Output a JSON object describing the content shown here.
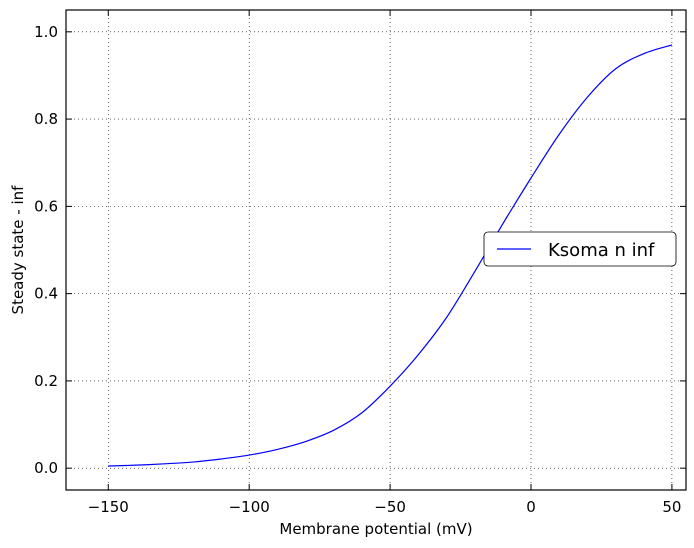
{
  "chart_data": {
    "type": "line",
    "xlabel": "Membrane potential (mV)",
    "ylabel": "Steady state - inf",
    "xlim": [
      -165,
      55
    ],
    "ylim": [
      -0.05,
      1.05
    ],
    "xticks": [
      -150,
      -100,
      -50,
      0,
      50
    ],
    "yticks": [
      0.0,
      0.2,
      0.4,
      0.6,
      0.8,
      1.0
    ],
    "xtick_labels": [
      "−150",
      "−100",
      "−50",
      "0",
      "50"
    ],
    "ytick_labels": [
      "0.0",
      "0.2",
      "0.4",
      "0.6",
      "0.8",
      "1.0"
    ],
    "grid": true,
    "legend_position": "center-right",
    "series": [
      {
        "name": "Ksoma n inf",
        "color": "#0000ff",
        "x": [
          -150,
          -140,
          -130,
          -120,
          -110,
          -100,
          -90,
          -80,
          -70,
          -60,
          -50,
          -40,
          -30,
          -20,
          -10,
          0,
          10,
          20,
          30,
          40,
          50
        ],
        "y": [
          0.005,
          0.007,
          0.01,
          0.014,
          0.021,
          0.03,
          0.043,
          0.061,
          0.087,
          0.127,
          0.188,
          0.26,
          0.345,
          0.45,
          0.56,
          0.665,
          0.765,
          0.85,
          0.915,
          0.95,
          0.97
        ]
      }
    ]
  }
}
